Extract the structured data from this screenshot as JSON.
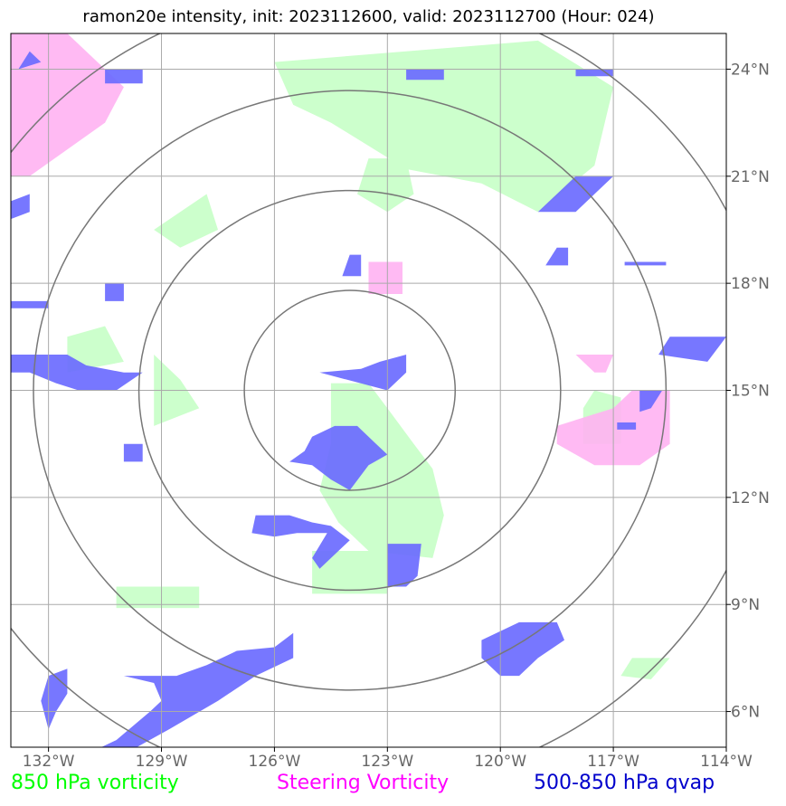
{
  "title": "ramon20e intensity, init: 2023112600, valid: 2023112700 (Hour: 024)",
  "legend": [
    {
      "label": "850 hPa vorticity",
      "color": "#00ff00"
    },
    {
      "label": "Steering Vorticity",
      "color": "#ff00ff"
    },
    {
      "label": "500-850 hPa qvap",
      "color": "#0000cc"
    }
  ],
  "colors": {
    "vorticity_fill": "#ccffcc",
    "steering_fill": "#ffb3f2",
    "qvap_fill": "#6b6bff",
    "grid": "#aaaaaa",
    "rings": "#777777",
    "tick_text": "#666666"
  },
  "chart_data": {
    "type": "map",
    "xlim": [
      -133,
      -114
    ],
    "ylim": [
      5,
      25
    ],
    "xticks": [
      -132,
      -129,
      -126,
      -123,
      -120,
      -117,
      -114
    ],
    "xtick_labels": [
      "132°W",
      "129°W",
      "126°W",
      "123°W",
      "120°W",
      "117°W",
      "114°W"
    ],
    "yticks": [
      6,
      9,
      12,
      15,
      18,
      21,
      24
    ],
    "ytick_labels": [
      "6°N",
      "9°N",
      "12°N",
      "15°N",
      "18°N",
      "21°N",
      "24°N"
    ],
    "grid": true,
    "range_rings_center": [
      -124,
      15
    ],
    "range_rings_radius_deg": [
      2.8,
      5.6,
      8.4,
      11.2
    ],
    "green_regions": [
      [
        [
          -124.5,
          15.2
        ],
        [
          -123.5,
          15.2
        ],
        [
          -123.0,
          14.5
        ],
        [
          -122.3,
          13.5
        ],
        [
          -121.8,
          12.8
        ],
        [
          -121.5,
          11.5
        ],
        [
          -121.8,
          10.3
        ],
        [
          -123.5,
          10.5
        ],
        [
          -124.3,
          11.3
        ],
        [
          -124.8,
          12.2
        ],
        [
          -124.5,
          13.5
        ]
      ],
      [
        [
          -125.0,
          10.5
        ],
        [
          -123.0,
          10.5
        ],
        [
          -123.0,
          9.3
        ],
        [
          -125.0,
          9.3
        ]
      ],
      [
        [
          -126.0,
          24.2
        ],
        [
          -119.0,
          24.8
        ],
        [
          -117.0,
          23.5
        ],
        [
          -117.5,
          21.3
        ],
        [
          -119.0,
          20.0
        ],
        [
          -120.5,
          20.8
        ],
        [
          -122.5,
          21.2
        ],
        [
          -124.5,
          22.5
        ],
        [
          -125.5,
          23.0
        ]
      ],
      [
        [
          -123.5,
          21.5
        ],
        [
          -122.5,
          21.5
        ],
        [
          -122.3,
          20.5
        ],
        [
          -123.0,
          20.0
        ],
        [
          -123.8,
          20.5
        ]
      ],
      [
        [
          -128.5,
          20.0
        ],
        [
          -127.8,
          20.5
        ],
        [
          -127.5,
          19.5
        ],
        [
          -128.5,
          19.0
        ],
        [
          -129.2,
          19.5
        ]
      ],
      [
        [
          -129.2,
          16.0
        ],
        [
          -128.5,
          15.3
        ],
        [
          -128.0,
          14.5
        ],
        [
          -129.2,
          14.0
        ]
      ],
      [
        [
          -130.2,
          9.5
        ],
        [
          -128.0,
          9.5
        ],
        [
          -128.0,
          8.9
        ],
        [
          -130.2,
          8.9
        ]
      ],
      [
        [
          -117.5,
          15.0
        ],
        [
          -116.8,
          14.8
        ],
        [
          -116.8,
          13.5
        ],
        [
          -117.8,
          13.5
        ],
        [
          -117.8,
          14.5
        ]
      ],
      [
        [
          -131.5,
          16.5
        ],
        [
          -130.5,
          16.8
        ],
        [
          -130.0,
          15.8
        ],
        [
          -131.5,
          15.5
        ]
      ],
      [
        [
          -116.5,
          7.5
        ],
        [
          -115.5,
          7.5
        ],
        [
          -116.0,
          6.9
        ],
        [
          -116.8,
          7.0
        ]
      ]
    ],
    "pink_regions": [
      [
        [
          -133.0,
          25.0
        ],
        [
          -131.5,
          25.0
        ],
        [
          -130.0,
          23.5
        ],
        [
          -130.5,
          22.5
        ],
        [
          -132.5,
          21.0
        ],
        [
          -133.0,
          21.0
        ]
      ],
      [
        [
          -123.5,
          18.6
        ],
        [
          -122.6,
          18.6
        ],
        [
          -122.6,
          17.7
        ],
        [
          -123.5,
          17.7
        ]
      ],
      [
        [
          -116.5,
          15.0
        ],
        [
          -115.5,
          15.0
        ],
        [
          -115.5,
          13.5
        ],
        [
          -116.3,
          12.9
        ],
        [
          -117.5,
          12.9
        ],
        [
          -118.5,
          13.5
        ],
        [
          -118.5,
          14.0
        ],
        [
          -117.0,
          14.5
        ]
      ],
      [
        [
          -118.0,
          16.0
        ],
        [
          -117.0,
          16.0
        ],
        [
          -117.2,
          15.5
        ],
        [
          -117.5,
          15.5
        ]
      ]
    ],
    "blue_regions": [
      [
        [
          -124.8,
          15.5
        ],
        [
          -123.0,
          15.0
        ],
        [
          -122.5,
          15.5
        ],
        [
          -122.5,
          16.0
        ],
        [
          -123.2,
          15.8
        ],
        [
          -123.7,
          15.6
        ]
      ],
      [
        [
          -125.0,
          13.7
        ],
        [
          -124.4,
          14.0
        ],
        [
          -123.8,
          14.0
        ],
        [
          -123.3,
          13.5
        ],
        [
          -123.0,
          13.2
        ],
        [
          -123.5,
          12.9
        ],
        [
          -124.0,
          12.2
        ],
        [
          -124.5,
          12.5
        ],
        [
          -125.0,
          12.9
        ],
        [
          -125.6,
          13.0
        ],
        [
          -125.2,
          13.3
        ]
      ],
      [
        [
          -126.5,
          11.5
        ],
        [
          -125.6,
          11.5
        ],
        [
          -125.0,
          11.3
        ],
        [
          -124.5,
          11.2
        ],
        [
          -124.0,
          10.8
        ],
        [
          -124.8,
          10.0
        ],
        [
          -125.0,
          10.3
        ],
        [
          -124.6,
          11.0
        ],
        [
          -125.4,
          11.0
        ],
        [
          -126.0,
          10.9
        ],
        [
          -126.6,
          11.0
        ]
      ],
      [
        [
          -123.0,
          10.7
        ],
        [
          -122.1,
          10.7
        ],
        [
          -122.2,
          9.8
        ],
        [
          -122.5,
          9.5
        ],
        [
          -123.0,
          9.5
        ]
      ],
      [
        [
          -130.0,
          7.0
        ],
        [
          -128.6,
          7.0
        ],
        [
          -127.8,
          7.3
        ],
        [
          -127.0,
          7.7
        ],
        [
          -126.0,
          7.8
        ],
        [
          -125.5,
          8.2
        ],
        [
          -125.5,
          7.5
        ],
        [
          -126.5,
          7.0
        ],
        [
          -127.5,
          6.3
        ],
        [
          -128.8,
          5.5
        ],
        [
          -130.0,
          4.8
        ],
        [
          -131.0,
          4.8
        ],
        [
          -130.2,
          5.2
        ],
        [
          -129.3,
          6.0
        ],
        [
          -129.0,
          6.3
        ],
        [
          -129.2,
          6.8
        ]
      ],
      [
        [
          -132.0,
          7.0
        ],
        [
          -131.5,
          7.2
        ],
        [
          -131.5,
          6.5
        ],
        [
          -131.8,
          6.0
        ],
        [
          -132.0,
          5.5
        ],
        [
          -132.2,
          6.3
        ]
      ],
      [
        [
          -133.0,
          16.0
        ],
        [
          -131.5,
          16.0
        ],
        [
          -131.0,
          15.7
        ],
        [
          -130.0,
          15.5
        ],
        [
          -129.5,
          15.5
        ],
        [
          -130.2,
          15.0
        ],
        [
          -131.2,
          15.0
        ],
        [
          -131.8,
          15.2
        ],
        [
          -132.5,
          15.5
        ],
        [
          -133.0,
          15.5
        ]
      ],
      [
        [
          -130.0,
          13.5
        ],
        [
          -129.5,
          13.5
        ],
        [
          -129.5,
          13.0
        ],
        [
          -130.0,
          13.0
        ]
      ],
      [
        [
          -119.5,
          8.5
        ],
        [
          -118.5,
          8.5
        ],
        [
          -118.3,
          8.0
        ],
        [
          -119.0,
          7.5
        ],
        [
          -119.5,
          7.0
        ],
        [
          -120.0,
          7.0
        ],
        [
          -120.5,
          7.5
        ],
        [
          -120.5,
          8.0
        ]
      ],
      [
        [
          -118.0,
          21.0
        ],
        [
          -117.0,
          21.0
        ],
        [
          -117.5,
          20.5
        ],
        [
          -118.0,
          20.0
        ],
        [
          -119.0,
          20.0
        ],
        [
          -118.5,
          20.5
        ]
      ],
      [
        [
          -118.5,
          19.0
        ],
        [
          -118.2,
          19.0
        ],
        [
          -118.2,
          18.5
        ],
        [
          -118.8,
          18.5
        ]
      ],
      [
        [
          -114.0,
          16.5
        ],
        [
          -115.5,
          16.5
        ],
        [
          -115.8,
          16.0
        ],
        [
          -114.5,
          15.8
        ]
      ],
      [
        [
          -116.3,
          15.0
        ],
        [
          -115.7,
          15.0
        ],
        [
          -116.0,
          14.5
        ],
        [
          -116.3,
          14.4
        ]
      ],
      [
        [
          -130.5,
          18.0
        ],
        [
          -130.0,
          18.0
        ],
        [
          -130.0,
          17.5
        ],
        [
          -130.5,
          17.5
        ]
      ],
      [
        [
          -124.0,
          18.8
        ],
        [
          -123.7,
          18.8
        ],
        [
          -123.7,
          18.2
        ],
        [
          -124.2,
          18.2
        ]
      ],
      [
        [
          -122.5,
          24.0
        ],
        [
          -121.5,
          24.0
        ],
        [
          -121.5,
          23.7
        ],
        [
          -122.5,
          23.7
        ]
      ],
      [
        [
          -130.5,
          24.0
        ],
        [
          -129.5,
          24.0
        ],
        [
          -129.5,
          23.6
        ],
        [
          -130.5,
          23.6
        ]
      ],
      [
        [
          -133.0,
          20.3
        ],
        [
          -132.5,
          20.5
        ],
        [
          -132.5,
          20.0
        ],
        [
          -133.0,
          19.8
        ]
      ],
      [
        [
          -133.0,
          17.5
        ],
        [
          -132.0,
          17.5
        ],
        [
          -132.0,
          17.3
        ],
        [
          -133.0,
          17.3
        ]
      ],
      [
        [
          -116.7,
          18.6
        ],
        [
          -115.6,
          18.6
        ],
        [
          -115.6,
          18.5
        ],
        [
          -116.7,
          18.5
        ]
      ],
      [
        [
          -118.0,
          24.0
        ],
        [
          -117.0,
          24.0
        ],
        [
          -117.0,
          23.8
        ],
        [
          -118.0,
          23.8
        ]
      ],
      [
        [
          -132.5,
          24.5
        ],
        [
          -132.2,
          24.2
        ],
        [
          -132.8,
          24.0
        ]
      ],
      [
        [
          -116.9,
          14.1
        ],
        [
          -116.4,
          14.1
        ],
        [
          -116.4,
          13.9
        ],
        [
          -116.9,
          13.9
        ]
      ]
    ]
  }
}
